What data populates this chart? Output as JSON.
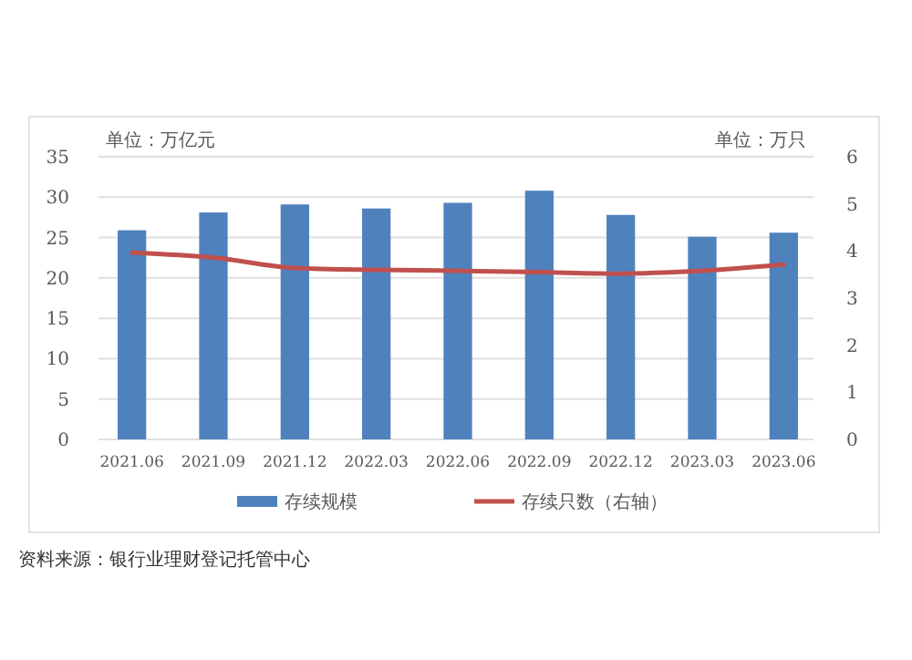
{
  "chart_data": {
    "type": "bar",
    "ylabel": "单位：万亿元",
    "y2label": "单位：万只",
    "categories": [
      "2021.06",
      "2021.09",
      "2021.12",
      "2022.03",
      "2022.06",
      "2022.09",
      "2022.12",
      "2023.03",
      "2023.06"
    ],
    "series": [
      {
        "name": "存续规模",
        "color": "#4f81bd",
        "values": [
          25.9,
          28.1,
          29.1,
          28.6,
          29.3,
          30.8,
          27.8,
          25.1,
          25.6
        ]
      },
      {
        "name": "存续只数（右轴）",
        "type": "line",
        "axis": "y2",
        "color": "#c0504d",
        "values": [
          3.97,
          3.86,
          3.64,
          3.6,
          3.58,
          3.55,
          3.52,
          3.58,
          3.71
        ]
      }
    ],
    "ylim": [
      0,
      35
    ],
    "yticks": [
      0,
      5,
      10,
      15,
      20,
      25,
      30,
      35
    ],
    "y2lim": [
      0,
      6
    ],
    "y2ticks": [
      0,
      1,
      2,
      3,
      4,
      5,
      6
    ],
    "grid": "y",
    "legend": "bottom",
    "annotations": [
      "资料来源：银行业理财登记托管中心"
    ]
  }
}
